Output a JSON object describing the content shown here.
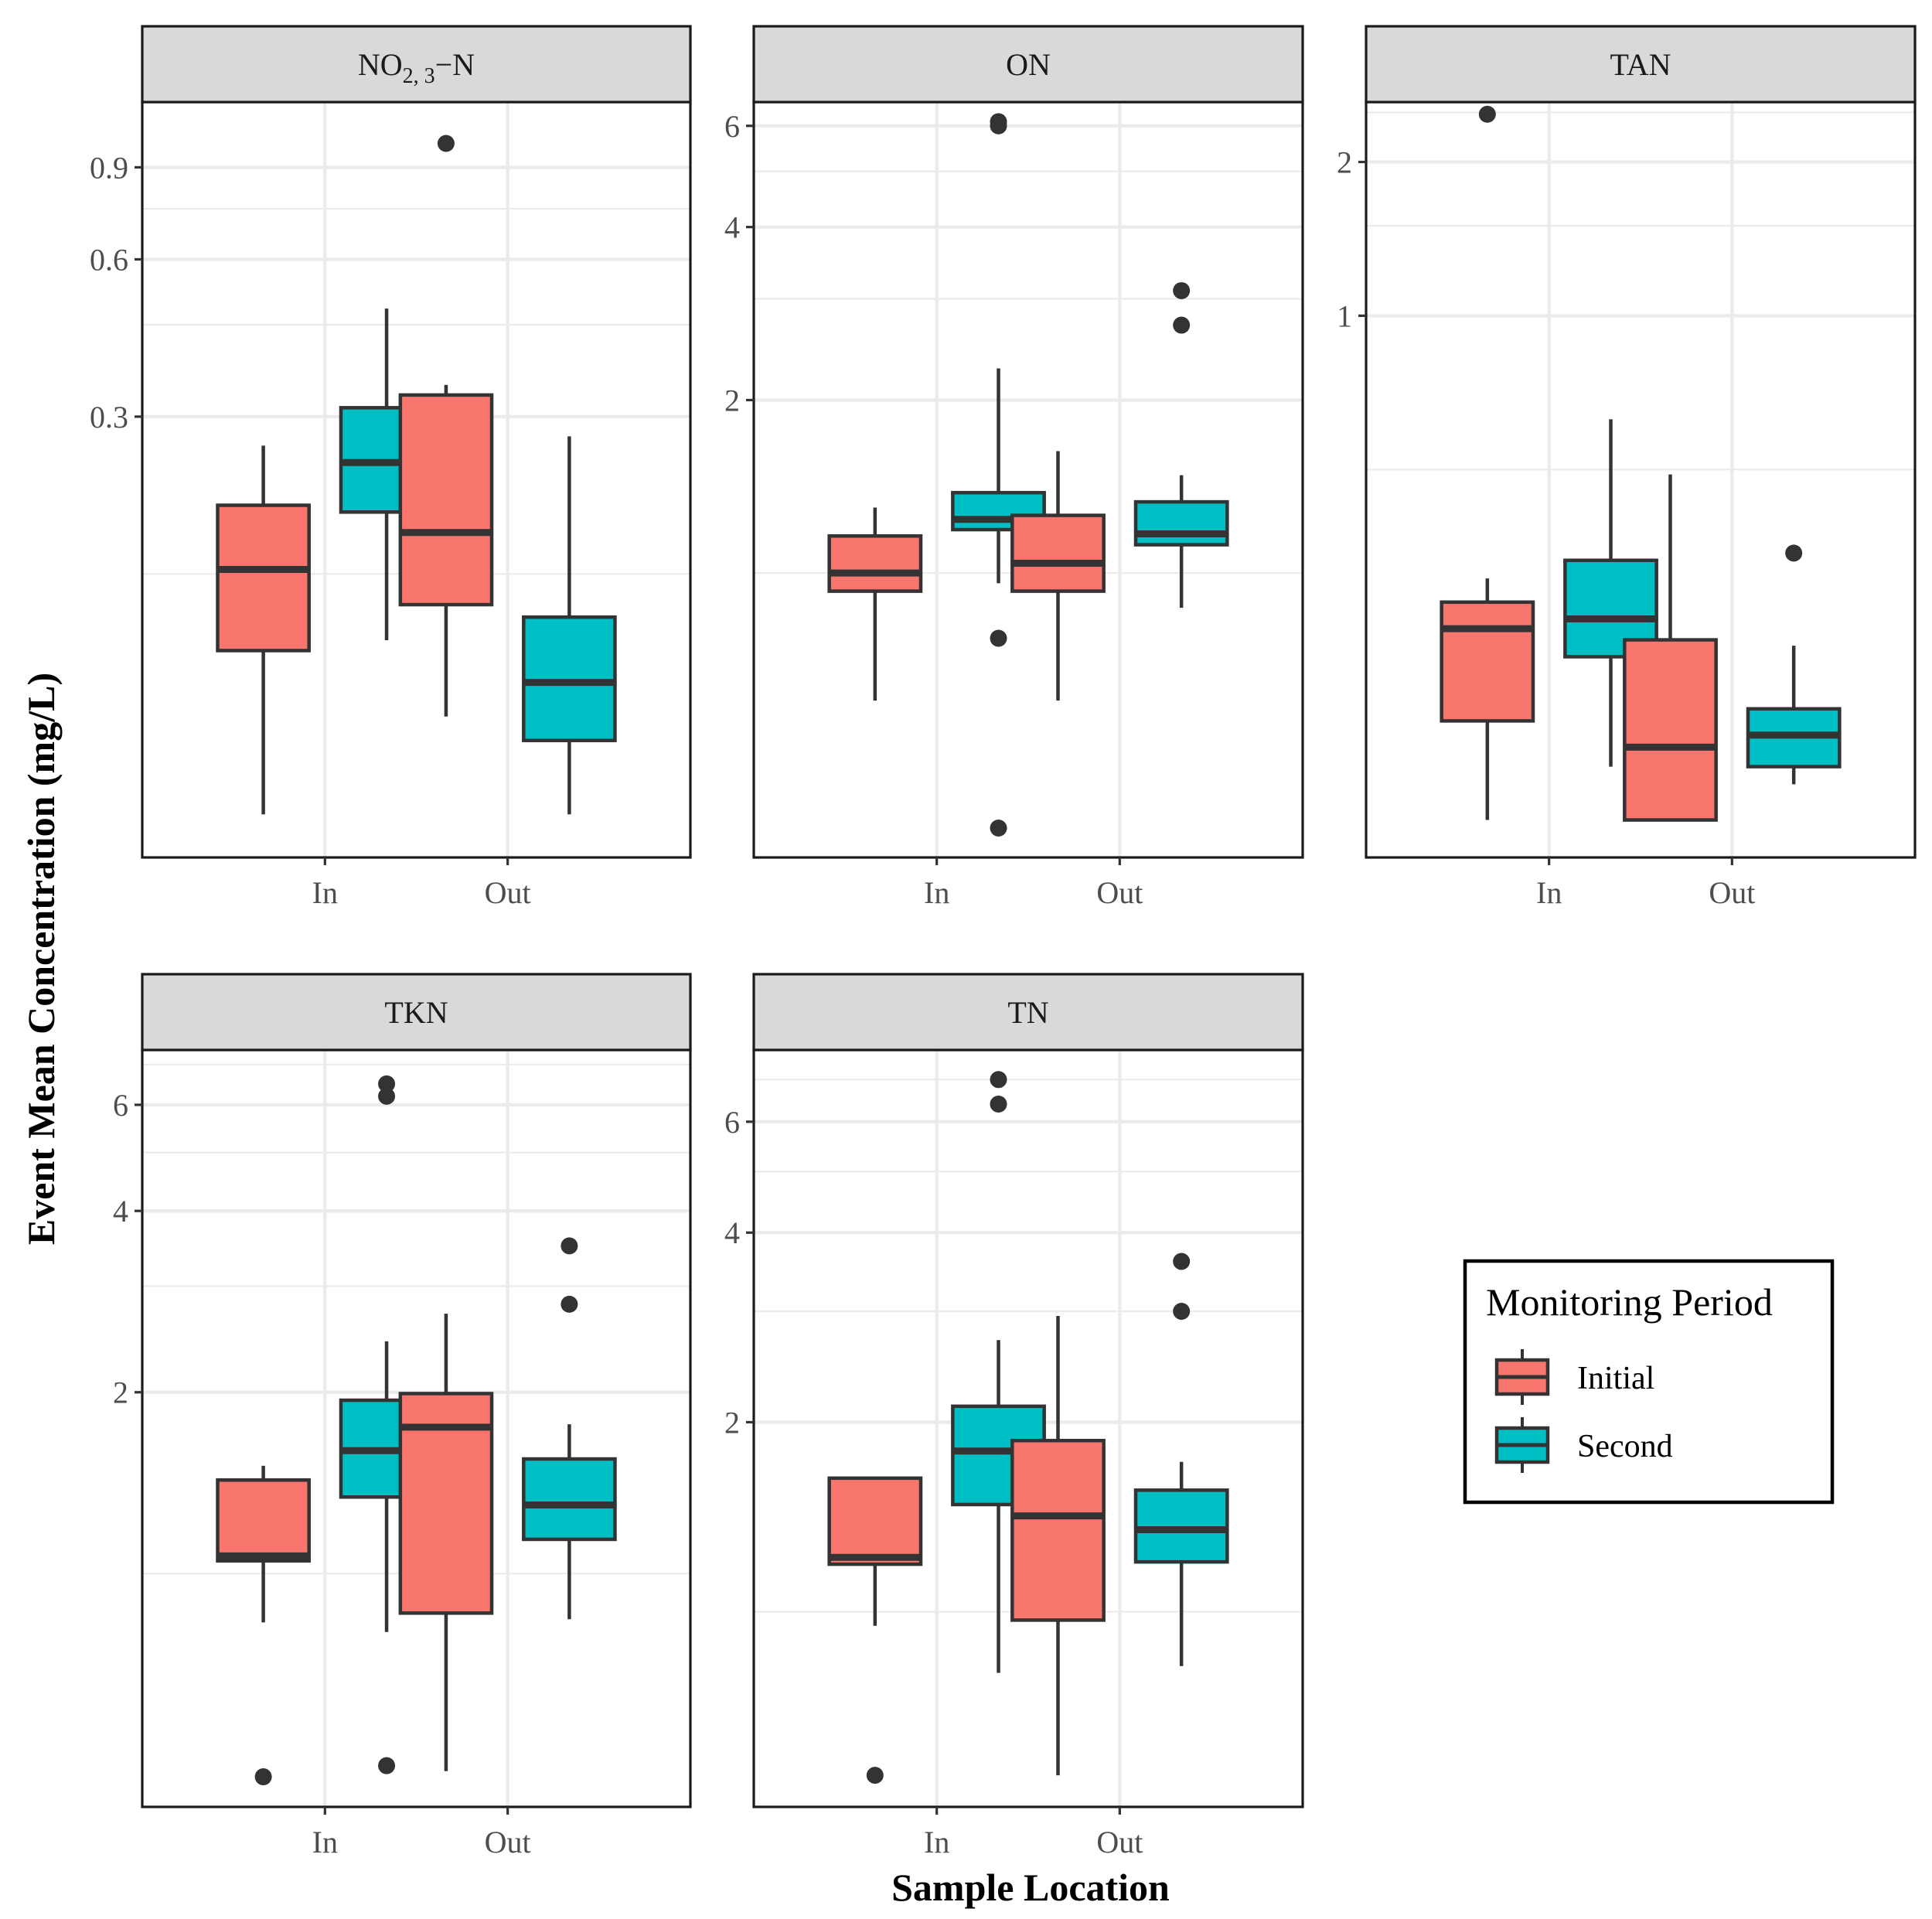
{
  "chart_data": {
    "type": "boxplot",
    "xlabel": "Sample Location",
    "ylabel": "Event Mean Concentration (mg/L)",
    "categories": [
      "In",
      "Out"
    ],
    "y_scale": "log10",
    "legend": {
      "title": "Monitoring Period",
      "placement": "right",
      "items": [
        {
          "label": "Initial",
          "color": "#F8766D"
        },
        {
          "label": "Second",
          "color": "#00BFC4"
        }
      ]
    },
    "panels": [
      {
        "title": "NO",
        "title_sub": "2, 3",
        "title_suffix": "−N",
        "ylim": [
          0.043,
          1.2
        ],
        "ticks": [
          {
            "v": 0.3,
            "label": "0.3"
          },
          {
            "v": 0.6,
            "label": "0.6"
          },
          {
            "v": 0.9,
            "label": "0.9"
          }
        ],
        "minor": [
          0.15,
          0.45,
          0.75
        ],
        "boxes": [
          {
            "cat": "In",
            "group": "Initial",
            "lower": 0.052,
            "q1": 0.107,
            "median": 0.153,
            "q3": 0.203,
            "upper": 0.264,
            "outliers": []
          },
          {
            "cat": "In",
            "group": "Second",
            "lower": 0.112,
            "q1": 0.197,
            "median": 0.245,
            "q3": 0.312,
            "upper": 0.483,
            "outliers": []
          },
          {
            "cat": "Out",
            "group": "Initial",
            "lower": 0.08,
            "q1": 0.131,
            "median": 0.18,
            "q3": 0.33,
            "upper": 0.345,
            "outliers": [
              1.0
            ]
          },
          {
            "cat": "Out",
            "group": "Second",
            "lower": 0.052,
            "q1": 0.072,
            "median": 0.093,
            "q3": 0.124,
            "upper": 0.275,
            "outliers": []
          }
        ]
      },
      {
        "title": "ON",
        "ylim": [
          0.32,
          6.6
        ],
        "ticks": [
          {
            "v": 2,
            "label": "2"
          },
          {
            "v": 4,
            "label": "4"
          },
          {
            "v": 6,
            "label": "6"
          }
        ],
        "minor": [
          1,
          3,
          5
        ],
        "boxes": [
          {
            "cat": "In",
            "group": "Initial",
            "lower": 0.6,
            "q1": 0.93,
            "median": 1.0,
            "q3": 1.16,
            "upper": 1.3,
            "outliers": []
          },
          {
            "cat": "In",
            "group": "Second",
            "lower": 0.96,
            "q1": 1.19,
            "median": 1.24,
            "q3": 1.38,
            "upper": 2.27,
            "outliers": [
              0.36,
              0.77,
              6.0,
              6.1
            ]
          },
          {
            "cat": "Out",
            "group": "Initial",
            "lower": 0.6,
            "q1": 0.93,
            "median": 1.04,
            "q3": 1.26,
            "upper": 1.63,
            "outliers": []
          },
          {
            "cat": "Out",
            "group": "Second",
            "lower": 0.87,
            "q1": 1.12,
            "median": 1.17,
            "q3": 1.33,
            "upper": 1.48,
            "outliers": [
              2.7,
              3.1
            ]
          }
        ]
      },
      {
        "title": "TAN",
        "ylim": [
          0.087,
          2.62
        ],
        "ticks": [
          {
            "v": 1,
            "label": "1"
          },
          {
            "v": 2,
            "label": "2"
          }
        ],
        "minor": [
          0.5,
          1.5,
          2.5
        ],
        "boxes": [
          {
            "cat": "In",
            "group": "Initial",
            "lower": 0.103,
            "q1": 0.161,
            "median": 0.244,
            "q3": 0.275,
            "upper": 0.306,
            "outliers": [
              2.48
            ]
          },
          {
            "cat": "In",
            "group": "Second",
            "lower": 0.131,
            "q1": 0.215,
            "median": 0.255,
            "q3": 0.332,
            "upper": 0.627,
            "outliers": []
          },
          {
            "cat": "Out",
            "group": "Initial",
            "lower": 0.103,
            "q1": 0.103,
            "median": 0.143,
            "q3": 0.232,
            "upper": 0.489,
            "outliers": []
          },
          {
            "cat": "Out",
            "group": "Second",
            "lower": 0.121,
            "q1": 0.131,
            "median": 0.151,
            "q3": 0.17,
            "upper": 0.226,
            "outliers": [
              0.343
            ]
          }
        ]
      },
      {
        "title": "TKN",
        "ylim": [
          0.41,
          7.4
        ],
        "ticks": [
          {
            "v": 2,
            "label": "2"
          },
          {
            "v": 4,
            "label": "4"
          },
          {
            "v": 6,
            "label": "6"
          }
        ],
        "minor": [
          1,
          3,
          5,
          7
        ],
        "boxes": [
          {
            "cat": "In",
            "group": "Initial",
            "lower": 0.83,
            "q1": 1.05,
            "median": 1.07,
            "q3": 1.43,
            "upper": 1.51,
            "outliers": [
              0.46
            ]
          },
          {
            "cat": "In",
            "group": "Second",
            "lower": 0.8,
            "q1": 1.34,
            "median": 1.6,
            "q3": 1.94,
            "upper": 2.43,
            "outliers": [
              0.48,
              6.2,
              6.5
            ]
          },
          {
            "cat": "Out",
            "group": "Initial",
            "lower": 0.47,
            "q1": 0.86,
            "median": 1.75,
            "q3": 1.99,
            "upper": 2.7,
            "outliers": []
          },
          {
            "cat": "Out",
            "group": "Second",
            "lower": 0.84,
            "q1": 1.14,
            "median": 1.3,
            "q3": 1.55,
            "upper": 1.77,
            "outliers": [
              2.8,
              3.5
            ]
          }
        ]
      },
      {
        "title": "TN",
        "ylim": [
          0.49,
          7.8
        ],
        "ticks": [
          {
            "v": 2,
            "label": "2"
          },
          {
            "v": 4,
            "label": "4"
          },
          {
            "v": 6,
            "label": "6"
          }
        ],
        "minor": [
          1,
          3,
          5,
          7
        ],
        "boxes": [
          {
            "cat": "In",
            "group": "Initial",
            "lower": 0.95,
            "q1": 1.19,
            "median": 1.22,
            "q3": 1.63,
            "upper": 1.63,
            "outliers": [
              0.55
            ]
          },
          {
            "cat": "In",
            "group": "Second",
            "lower": 0.8,
            "q1": 1.48,
            "median": 1.8,
            "q3": 2.12,
            "upper": 2.7,
            "outliers": [
              6.4,
              7.0
            ]
          },
          {
            "cat": "Out",
            "group": "Initial",
            "lower": 0.55,
            "q1": 0.97,
            "median": 1.42,
            "q3": 1.87,
            "upper": 2.95,
            "outliers": []
          },
          {
            "cat": "Out",
            "group": "Second",
            "lower": 0.82,
            "q1": 1.2,
            "median": 1.35,
            "q3": 1.56,
            "upper": 1.73,
            "outliers": [
              3.0,
              3.6
            ]
          }
        ]
      }
    ]
  }
}
